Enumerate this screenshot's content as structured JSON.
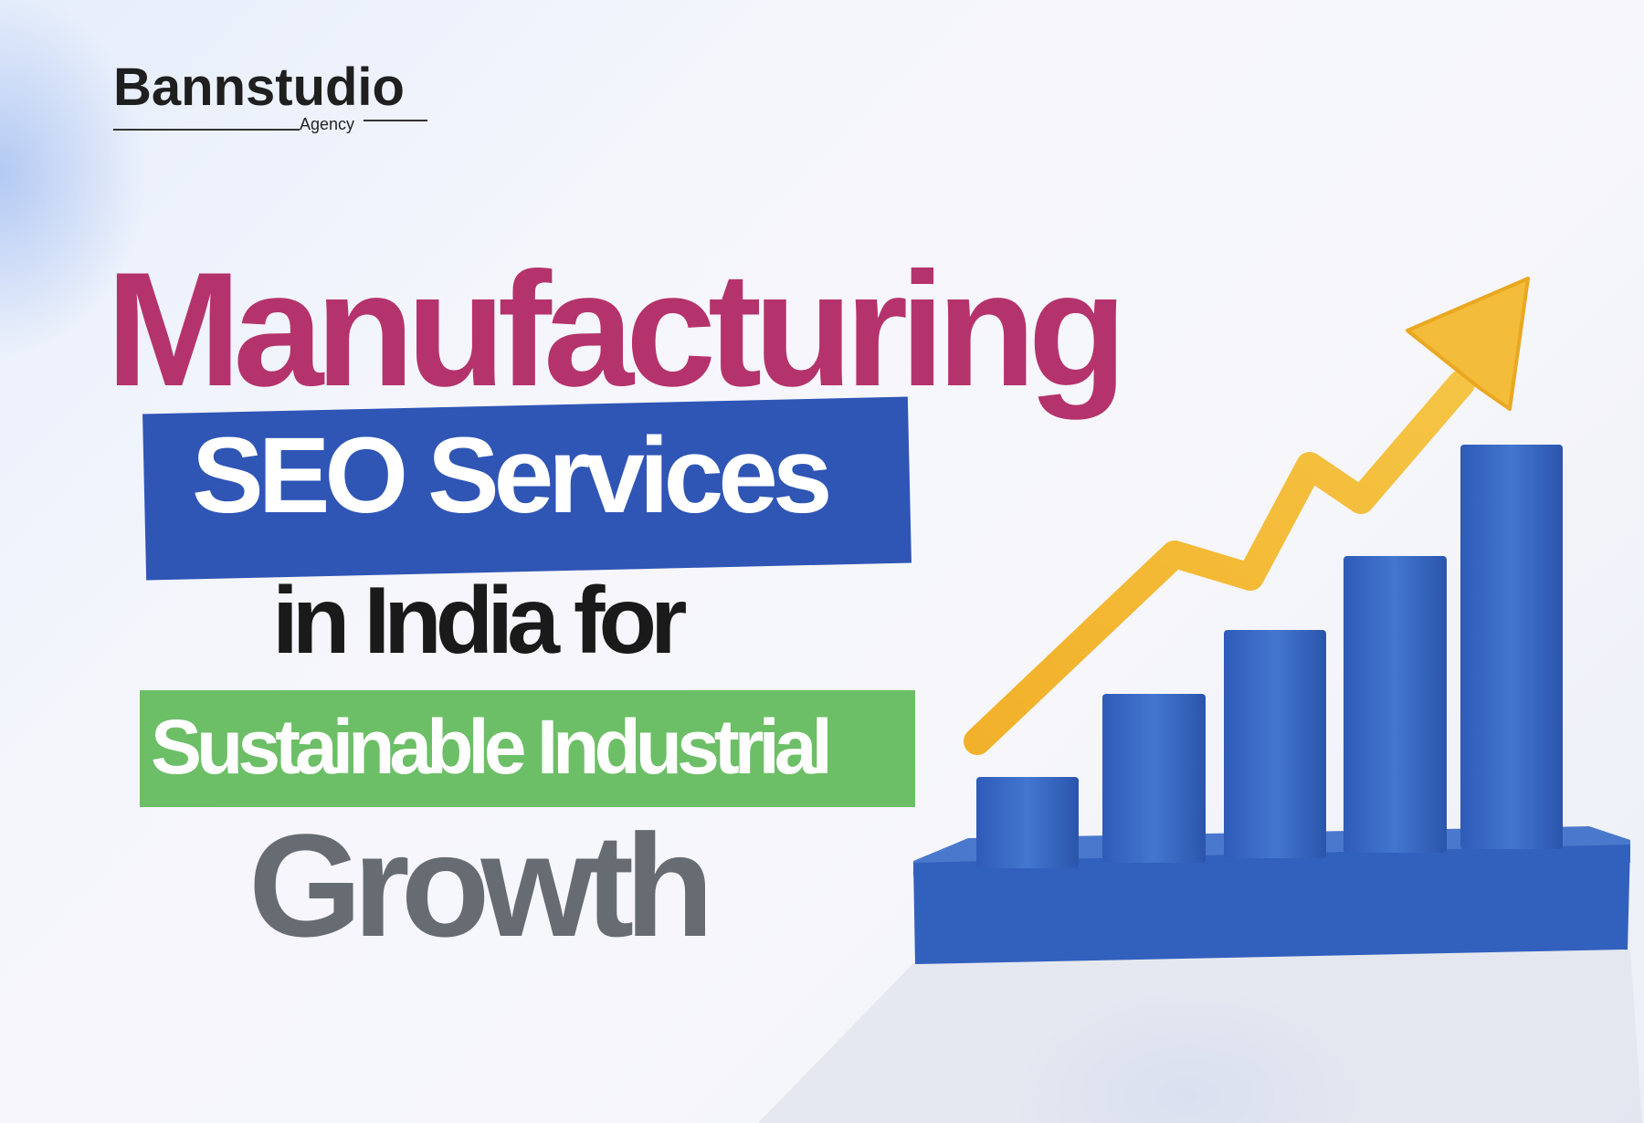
{
  "logo": {
    "name": "Bannstudio",
    "tagline": "Agency"
  },
  "headline": {
    "line1": "Manufacturing",
    "line2": "SEO Services",
    "line3": "in India for",
    "line4": "Sustainable Industrial",
    "line5": "Growth"
  },
  "colors": {
    "magenta": "#b5336c",
    "blue": "#2f55b5",
    "green": "#6cbf66",
    "gray": "#676c73",
    "bar_blue": "#3a68c4",
    "arrow_yellow": "#f2b731"
  },
  "illustration": {
    "type": "3d-bar-chart-with-rising-arrow",
    "bar_count": 5
  }
}
